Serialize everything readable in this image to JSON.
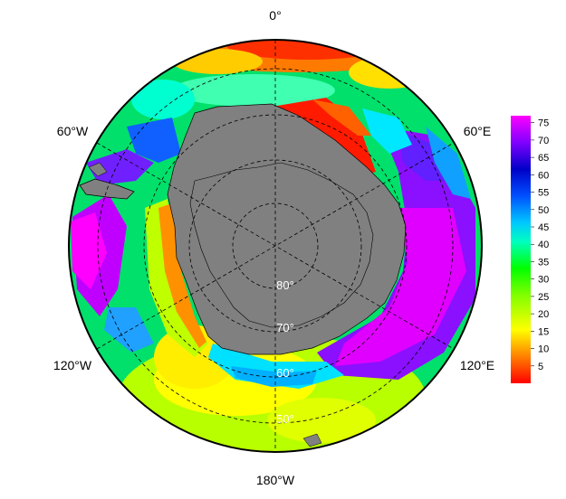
{
  "map": {
    "projection": "south-polar-stereographic",
    "longitude_labels": {
      "top": "0°",
      "upper_left": "60°W",
      "upper_right": "60°E",
      "lower_left": "120°W",
      "lower_right": "120°E",
      "bottom": "180°W"
    },
    "latitude_labels": [
      "80°",
      "70°",
      "60°",
      "50°"
    ],
    "land_color": "#808080",
    "gridlines": "dashed"
  },
  "colorbar": {
    "ticks": [
      "75",
      "70",
      "65",
      "60",
      "55",
      "50",
      "45",
      "40",
      "35",
      "30",
      "25",
      "20",
      "15",
      "10",
      "5"
    ],
    "range": [
      0,
      77
    ],
    "colors": [
      "#ff0000",
      "#ff8000",
      "#ffff00",
      "#80ff00",
      "#00ff00",
      "#00ffc0",
      "#00c8ff",
      "#0050ff",
      "#0000c8",
      "#8000ff",
      "#ff00ff"
    ]
  }
}
